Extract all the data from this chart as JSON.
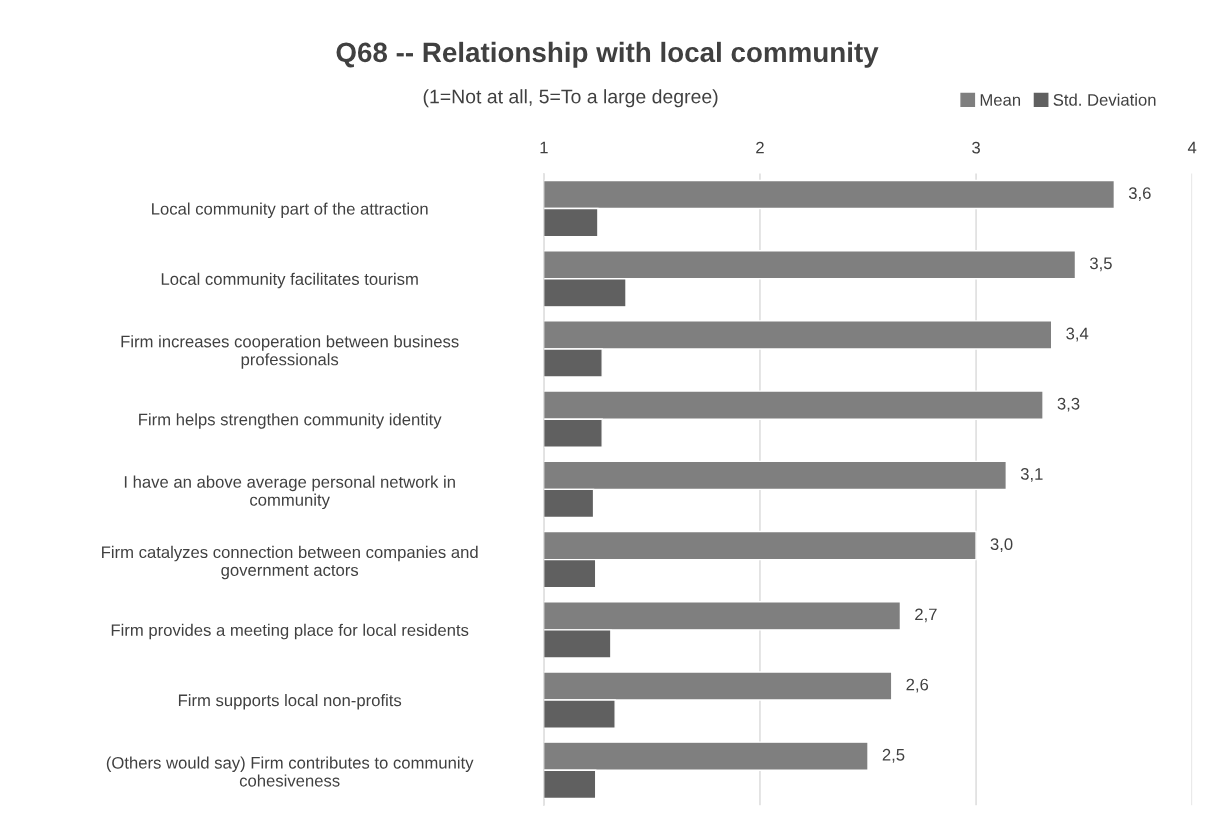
{
  "chart_data": {
    "type": "bar",
    "orientation": "horizontal",
    "title": "Q68 -- Relationship with local community",
    "subtitle": "(1=Not at all, 5=To a large degree)",
    "categories": [
      "Local community part of the attraction",
      "Local community facilitates tourism",
      "Firm increases cooperation between business\nprofessionals",
      "Firm helps strengthen community identity",
      "I have an above average personal network in\ncommunity",
      "Firm catalyzes connection between companies and\ngovernment actors",
      "Firm provides a meeting place for local residents",
      "Firm supports local non-profits",
      "(Others would say) Firm contributes to community\ncohesiveness"
    ],
    "series": [
      {
        "name": "Mean",
        "color": "#7f7f7f",
        "values": [
          3.64,
          3.46,
          3.35,
          3.31,
          3.14,
          3.0,
          2.65,
          2.61,
          2.5
        ],
        "value_labels": [
          "3,6",
          "3,5",
          "3,4",
          "3,3",
          "3,1",
          "3,0",
          "2,7",
          "2,6",
          "2,5"
        ]
      },
      {
        "name": "Std. Deviation",
        "color": "#606060",
        "values": [
          1.25,
          1.38,
          1.27,
          1.27,
          1.23,
          1.24,
          1.31,
          1.33,
          1.24
        ]
      }
    ],
    "xlim": [
      1,
      4
    ],
    "xticks": [
      1,
      2,
      3,
      4
    ],
    "grid": "x",
    "legend": "top right"
  }
}
